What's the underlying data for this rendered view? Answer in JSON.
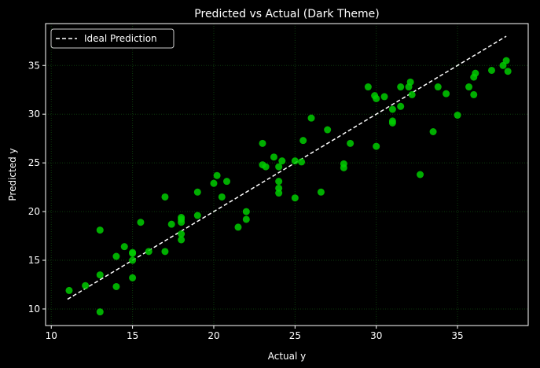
{
  "chart_data": {
    "type": "scatter",
    "title": "Predicted vs Actual (Dark Theme)",
    "xlabel": "Actual y",
    "ylabel": "Predicted y",
    "xlim": [
      9.65,
      39.35
    ],
    "ylim": [
      8.3,
      39.3
    ],
    "xticks": [
      10,
      15,
      20,
      25,
      30,
      35
    ],
    "yticks": [
      10,
      15,
      20,
      25,
      30,
      35
    ],
    "grid": true,
    "legend": {
      "placement": "top-left",
      "entries": [
        "Ideal Prediction"
      ]
    },
    "ideal_line": {
      "name": "Ideal Prediction",
      "x": [
        11,
        38
      ],
      "y": [
        11,
        38
      ],
      "color": "#ffffff",
      "style": "dashed"
    },
    "points_color": "#00cc00",
    "grid_color": "#0c3a0c",
    "points": [
      [
        11.1,
        11.9
      ],
      [
        12.1,
        12.4
      ],
      [
        13.0,
        18.1
      ],
      [
        13.0,
        13.5
      ],
      [
        13.0,
        9.7
      ],
      [
        14.0,
        15.4
      ],
      [
        14.0,
        12.3
      ],
      [
        14.5,
        16.4
      ],
      [
        15.0,
        15.8
      ],
      [
        15.0,
        15.7
      ],
      [
        15.0,
        15.0
      ],
      [
        15.0,
        13.2
      ],
      [
        15.5,
        18.9
      ],
      [
        16.0,
        15.9
      ],
      [
        17.0,
        21.5
      ],
      [
        17.0,
        15.9
      ],
      [
        17.4,
        18.7
      ],
      [
        18.0,
        19.4
      ],
      [
        18.0,
        19.2
      ],
      [
        18.0,
        18.9
      ],
      [
        18.0,
        17.7
      ],
      [
        18.0,
        17.1
      ],
      [
        19.0,
        22.0
      ],
      [
        19.0,
        19.6
      ],
      [
        20.0,
        22.9
      ],
      [
        20.2,
        23.7
      ],
      [
        20.5,
        21.5
      ],
      [
        20.8,
        23.1
      ],
      [
        21.5,
        18.4
      ],
      [
        22.0,
        20.0
      ],
      [
        22.0,
        19.2
      ],
      [
        23.0,
        27.0
      ],
      [
        23.0,
        24.8
      ],
      [
        23.2,
        24.6
      ],
      [
        23.7,
        25.6
      ],
      [
        24.0,
        24.6
      ],
      [
        24.0,
        23.1
      ],
      [
        24.0,
        22.4
      ],
      [
        24.0,
        21.9
      ],
      [
        24.2,
        25.2
      ],
      [
        25.0,
        25.2
      ],
      [
        25.0,
        21.4
      ],
      [
        25.4,
        25.1
      ],
      [
        25.5,
        27.3
      ],
      [
        26.0,
        29.6
      ],
      [
        26.6,
        22.0
      ],
      [
        27.0,
        28.4
      ],
      [
        28.0,
        24.9
      ],
      [
        28.0,
        24.5
      ],
      [
        28.4,
        27.0
      ],
      [
        29.5,
        32.8
      ],
      [
        29.9,
        31.9
      ],
      [
        30.0,
        31.6
      ],
      [
        30.0,
        26.7
      ],
      [
        30.5,
        31.8
      ],
      [
        31.0,
        30.5
      ],
      [
        31.0,
        29.3
      ],
      [
        31.0,
        29.1
      ],
      [
        31.5,
        32.8
      ],
      [
        31.5,
        30.8
      ],
      [
        32.0,
        32.8
      ],
      [
        32.1,
        33.3
      ],
      [
        32.2,
        32.0
      ],
      [
        32.7,
        23.8
      ],
      [
        33.5,
        28.2
      ],
      [
        33.8,
        32.8
      ],
      [
        34.3,
        32.1
      ],
      [
        35.0,
        29.9
      ],
      [
        35.7,
        32.8
      ],
      [
        36.0,
        33.8
      ],
      [
        36.0,
        32.0
      ],
      [
        36.1,
        34.2
      ],
      [
        37.1,
        34.5
      ],
      [
        37.8,
        35.0
      ],
      [
        38.0,
        35.5
      ],
      [
        38.1,
        34.4
      ]
    ]
  }
}
